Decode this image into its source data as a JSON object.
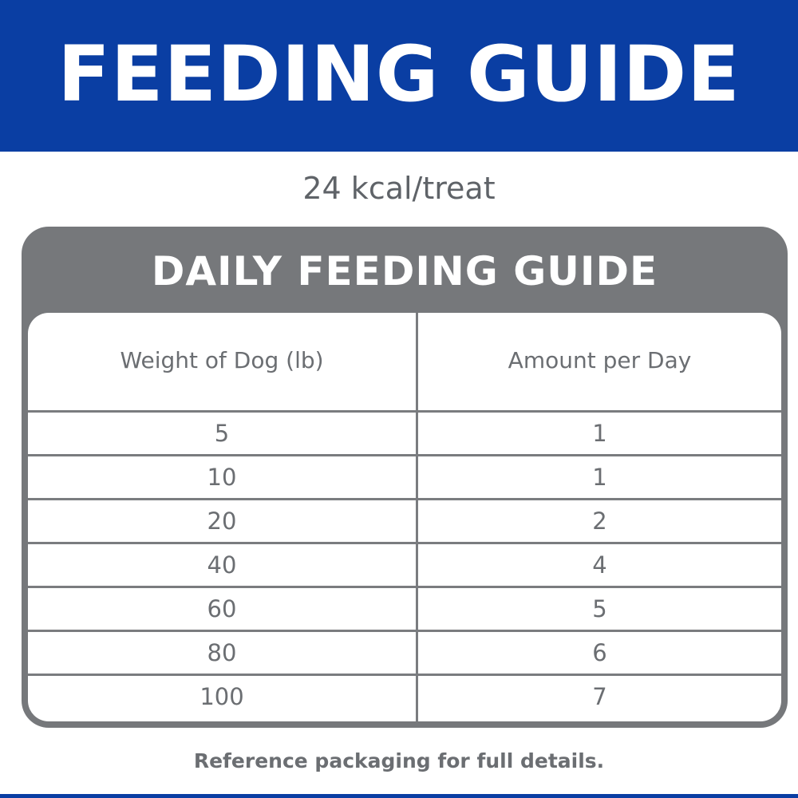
{
  "banner": {
    "title": "FEEDING GUIDE",
    "color": "#0a3ea3"
  },
  "subtitle": "24 kcal/treat",
  "card": {
    "title": "DAILY FEEDING GUIDE",
    "color": "#76787b",
    "columns": [
      "Weight of Dog (lb)",
      "Amount per Day"
    ],
    "rows": [
      {
        "weight": "5",
        "amount": "1"
      },
      {
        "weight": "10",
        "amount": "1"
      },
      {
        "weight": "20",
        "amount": "2"
      },
      {
        "weight": "40",
        "amount": "4"
      },
      {
        "weight": "60",
        "amount": "5"
      },
      {
        "weight": "80",
        "amount": "6"
      },
      {
        "weight": "100",
        "amount": "7"
      }
    ]
  },
  "footnote": "Reference packaging for full details."
}
